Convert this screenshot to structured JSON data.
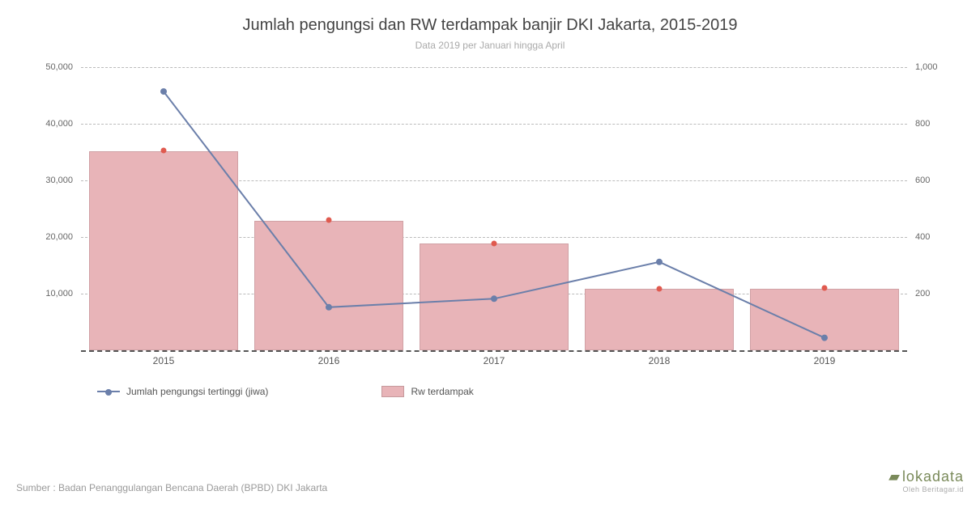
{
  "title": "Jumlah pengungsi dan RW terdampak banjir DKI Jakarta, 2015-2019",
  "subtitle": "Data 2019 per Januari hingga April",
  "chart": {
    "type": "bar+line",
    "categories": [
      "2015",
      "2016",
      "2017",
      "2018",
      "2019"
    ],
    "bar_series": {
      "name": "Rw terdampak",
      "axis": "right",
      "values": [
        702,
        458,
        376,
        217,
        216
      ],
      "color": "#e8b4b8",
      "border_color": "rgba(0,0,0,0.12)",
      "bar_width": 0.9
    },
    "line_series": {
      "name": "Jumlah pengungsi tertinggi (jiwa)",
      "axis": "left",
      "values": [
        45700,
        7600,
        9100,
        15600,
        2200
      ],
      "color": "#6b7faa",
      "line_width": 2,
      "marker": "circle",
      "marker_size": 8
    },
    "dot_series": {
      "axis": "right",
      "values": [
        705,
        460,
        378,
        218,
        220
      ],
      "color": "#e05a4f",
      "marker_size": 7
    },
    "y_left": {
      "min": 0,
      "max": 50000,
      "step": 10000,
      "fmt": "comma"
    },
    "y_right": {
      "min": 0,
      "max": 1000,
      "step": 200,
      "fmt": "comma"
    },
    "background_color": "#ffffff",
    "grid_color": "#bbbbbb",
    "baseline_color": "#555555",
    "title_fontsize": 20,
    "subtitle_fontsize": 12,
    "label_fontsize": 11
  },
  "legend": {
    "line_label": "Jumlah pengungsi tertinggi (jiwa)",
    "bar_label": "Rw terdampak"
  },
  "source": "Sumber : Badan Penanggulangan Bencana Daerah (BPBD) DKI Jakarta",
  "brand": {
    "name": "lokadata",
    "sub": "Oleh Beritagar.id"
  }
}
